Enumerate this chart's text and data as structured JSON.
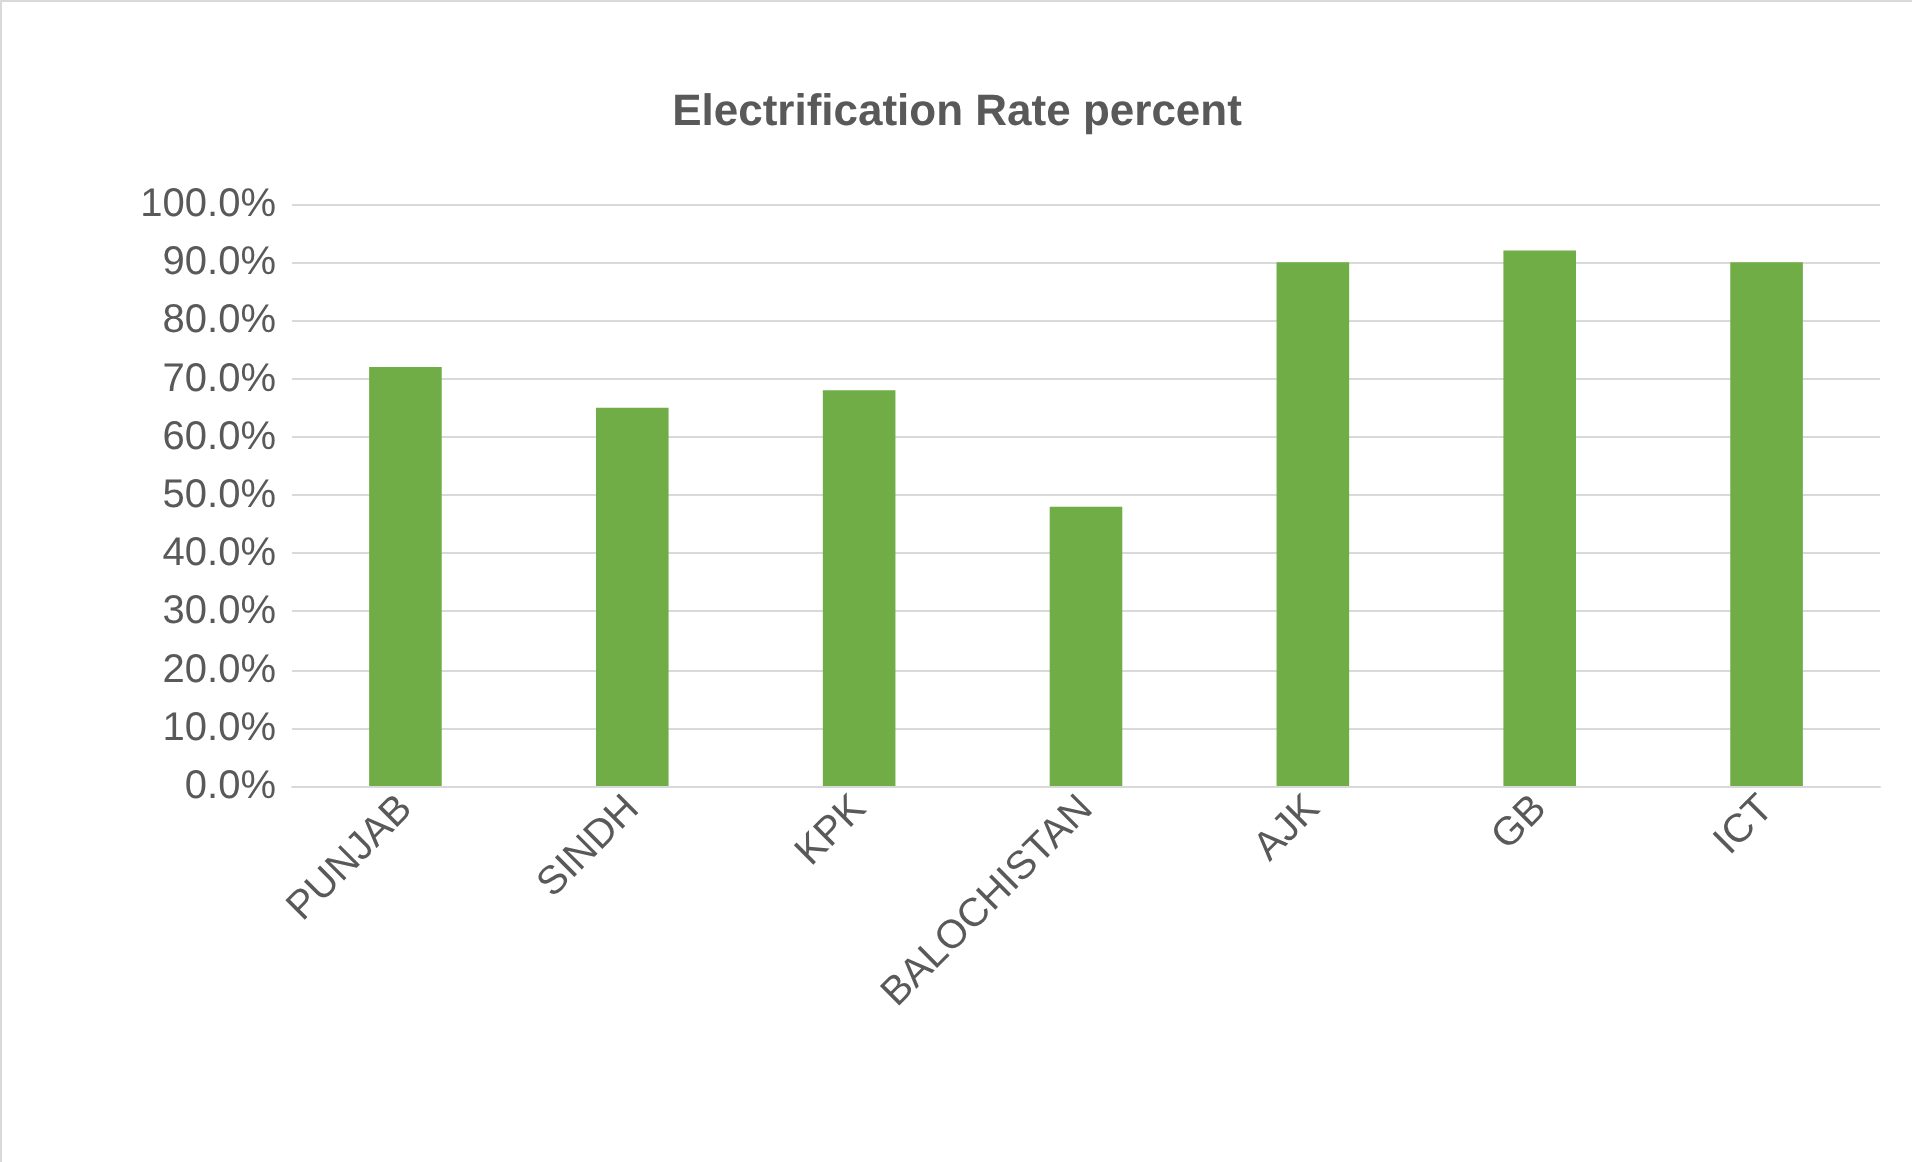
{
  "chart_data": {
    "type": "bar",
    "title": "Electrification Rate percent",
    "categories": [
      "PUNJAB",
      "SINDH",
      "KPK",
      "BALOCHISTAN",
      "AJK",
      "GB",
      "ICT"
    ],
    "values": [
      72,
      65,
      68,
      48,
      90,
      92,
      90
    ],
    "color": "#70ad47",
    "ylim": [
      0,
      100
    ],
    "yticks": [
      {
        "value": 0,
        "label": "0.0%"
      },
      {
        "value": 10,
        "label": "10.0%"
      },
      {
        "value": 20,
        "label": "20.0%"
      },
      {
        "value": 30,
        "label": "30.0%"
      },
      {
        "value": 40,
        "label": "40.0%"
      },
      {
        "value": 50,
        "label": "50.0%"
      },
      {
        "value": 60,
        "label": "60.0%"
      },
      {
        "value": 70,
        "label": "70.0%"
      },
      {
        "value": 80,
        "label": "80.0%"
      },
      {
        "value": 90,
        "label": "90.0%"
      },
      {
        "value": 100,
        "label": "100.0%"
      }
    ],
    "grid": "y"
  }
}
